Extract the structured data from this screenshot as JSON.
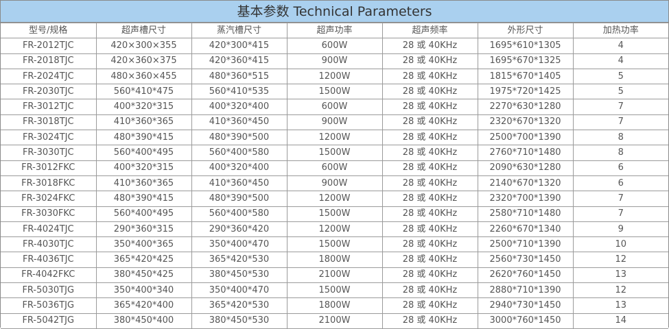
{
  "title": "基本参数 Technical Parameters",
  "colors": {
    "title_bg": "#aad0ef",
    "border": "#9a9a9a",
    "text": "#555555"
  },
  "headers": [
    "型号/规格",
    "超声槽尺寸",
    "蒸汽槽尺寸",
    "超声功率",
    "超声频率",
    "外形尺寸",
    "加热功率"
  ],
  "rows": [
    [
      "FR-2012TJC",
      "420×300×355",
      "420*300*415",
      "600W",
      "28 或 40KHz",
      "1695*610*1305",
      "4"
    ],
    [
      "FR-2018TJC",
      "420×360×375",
      "420*360*415",
      "900W",
      "28 或 40KHz",
      "1695*670*1325",
      "4"
    ],
    [
      "FR-2024TJC",
      "480×360×455",
      "480*360*515",
      "1200W",
      "28 或 40KHz",
      "1815*670*1405",
      "5"
    ],
    [
      "FR-2030TJC",
      "560*410*475",
      "560*410*535",
      "1500W",
      "28 或 40KHz",
      "1975*720*1425",
      "5"
    ],
    [
      "FR-3012TJC",
      "400*320*315",
      "400*320*400",
      "600W",
      "28 或 40KHz",
      "2270*630*1280",
      "7"
    ],
    [
      "FR-3018TJC",
      "410*360*365",
      "410*360*450",
      "900W",
      "28 或 40KHz",
      "2320*670*1320",
      "7"
    ],
    [
      "FR-3024TJC",
      "480*390*415",
      "480*390*500",
      "1200W",
      "28 或 40KHz",
      "2500*700*1390",
      "8"
    ],
    [
      "FR-3030TJC",
      "560*400*495",
      "560*400*580",
      "1500W",
      "28 或 40KHz",
      "2760*710*1480",
      "8"
    ],
    [
      "FR-3012FKC",
      "400*320*315",
      "400*320*400",
      "600W",
      "28 或 40KHz",
      "2090*630*1280",
      "6"
    ],
    [
      "FR-3018FKC",
      "410*360*365",
      "410*360*450",
      "900W",
      "28 或 40KHz",
      "2140*670*1320",
      "6"
    ],
    [
      "FR-3024FKC",
      "480*390*415",
      "480*390*500",
      "1200W",
      "28 或 40KHz",
      "2320*700*1390",
      "7"
    ],
    [
      "FR-3030FKC",
      "560*400*495",
      "560*400*580",
      "1500W",
      "28 或 40KHz",
      "2580*710*1480",
      "7"
    ],
    [
      "FR-4024TJC",
      "290*360*315",
      "290*360*420",
      "1200W",
      "28 或 40KHz",
      "2260*670*1340",
      "9"
    ],
    [
      "FR-4030TJC",
      "350*400*365",
      "350*400*470",
      "1500W",
      "28 或 40KHz",
      "2500*710*1390",
      "10"
    ],
    [
      "FR-4036TJC",
      "365*420*425",
      "365*420*530",
      "1800W",
      "28 或 40KHz",
      "2560*730*1450",
      "12"
    ],
    [
      "FR-4042FKC",
      "380*450*425",
      "380*450*530",
      "2100W",
      "28 或 40KHz",
      "2620*760*1450",
      "13"
    ],
    [
      "FR-5030TJG",
      "350*400*340",
      "350*400*470",
      "1500W",
      "28 或 40KHz",
      "2880*710*1390",
      "12"
    ],
    [
      "FR-5036TJG",
      "365*420*400",
      "365*420*530",
      "1800W",
      "28 或 40KHz",
      "2940*730*1450",
      "13"
    ],
    [
      "FR-5042TJG",
      "380*450*400",
      "380*450*530",
      "2100W",
      "28 或 40KHz",
      "3000*760*1450",
      "14"
    ]
  ]
}
